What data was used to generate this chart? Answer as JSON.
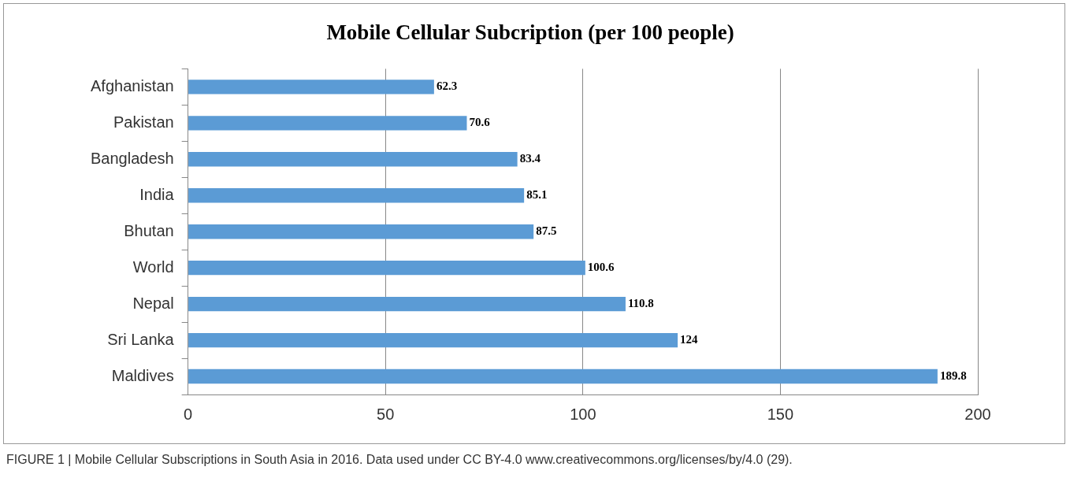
{
  "chart_data": {
    "type": "bar",
    "orientation": "horizontal",
    "title": "Mobile Cellular Subcription (per 100 people)",
    "categories": [
      "Afghanistan",
      "Pakistan",
      "Bangladesh",
      "India",
      "Bhutan",
      "World",
      "Nepal",
      "Sri Lanka",
      "Maldives"
    ],
    "values": [
      62.3,
      70.6,
      83.4,
      85.1,
      87.5,
      100.6,
      110.8,
      124,
      189.8
    ],
    "color": "#5b9bd5",
    "xlim": [
      0,
      200
    ],
    "xticks": [
      0,
      50,
      100,
      150,
      200
    ],
    "grid": "x",
    "data_labels": true,
    "annotations": [
      "FIGURE 1 | Mobile Cellular Subscriptions in South Asia in 2016. Data used under CC BY-4.0 www.creativecommons.org/licenses/by/4.0 (29)."
    ]
  }
}
